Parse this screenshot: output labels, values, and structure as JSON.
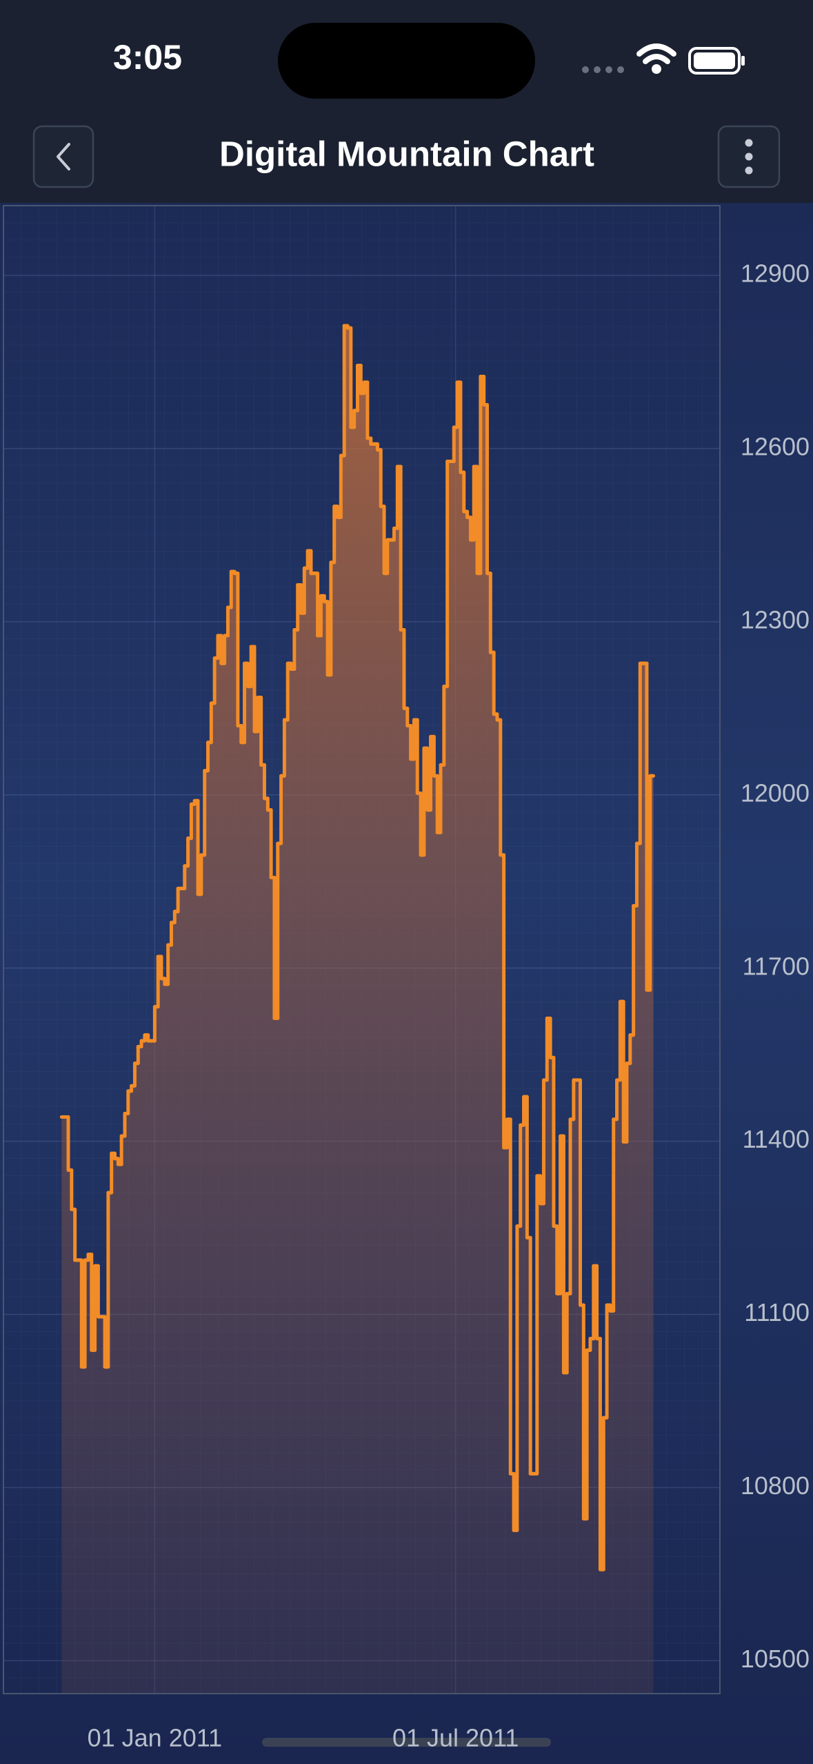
{
  "status_bar": {
    "time": "3:05"
  },
  "header": {
    "title": "Digital Mountain Chart"
  },
  "chart_data": {
    "type": "digital_mountain",
    "series": [
      {
        "color": "#f28c28",
        "x": [
          "2010-11-06",
          "2010-11-08",
          "2010-11-10",
          "2010-11-12",
          "2010-11-14",
          "2010-11-16",
          "2010-11-18",
          "2010-11-20",
          "2010-11-22",
          "2010-11-24",
          "2010-11-26",
          "2010-11-28",
          "2010-11-30",
          "2010-12-02",
          "2010-12-04",
          "2010-12-06",
          "2010-12-08",
          "2010-12-10",
          "2010-12-12",
          "2010-12-14",
          "2010-12-16",
          "2010-12-18",
          "2010-12-20",
          "2010-12-22",
          "2010-12-24",
          "2010-12-26",
          "2010-12-28",
          "2010-12-30",
          "2011-01-01",
          "2011-01-03",
          "2011-01-05",
          "2011-01-07",
          "2011-01-09",
          "2011-01-11",
          "2011-01-13",
          "2011-01-15",
          "2011-01-17",
          "2011-01-19",
          "2011-01-21",
          "2011-01-23",
          "2011-01-25",
          "2011-01-27",
          "2011-01-29",
          "2011-01-31",
          "2011-02-02",
          "2011-02-04",
          "2011-02-06",
          "2011-02-08",
          "2011-02-10",
          "2011-02-12",
          "2011-02-14",
          "2011-02-16",
          "2011-02-18",
          "2011-02-20",
          "2011-02-22",
          "2011-02-24",
          "2011-02-26",
          "2011-02-28",
          "2011-03-02",
          "2011-03-04",
          "2011-03-06",
          "2011-03-08",
          "2011-03-10",
          "2011-03-12",
          "2011-03-14",
          "2011-03-16",
          "2011-03-18",
          "2011-03-20",
          "2011-03-22",
          "2011-03-24",
          "2011-03-26",
          "2011-03-28",
          "2011-03-30",
          "2011-04-01",
          "2011-04-03",
          "2011-04-05",
          "2011-04-07",
          "2011-04-09",
          "2011-04-11",
          "2011-04-13",
          "2011-04-15",
          "2011-04-17",
          "2011-04-19",
          "2011-04-21",
          "2011-04-23",
          "2011-04-25",
          "2011-04-27",
          "2011-04-29",
          "2011-05-01",
          "2011-05-03",
          "2011-05-05",
          "2011-05-07",
          "2011-05-09",
          "2011-05-11",
          "2011-05-13",
          "2011-05-15",
          "2011-05-17",
          "2011-05-19",
          "2011-05-21",
          "2011-05-23",
          "2011-05-25",
          "2011-05-27",
          "2011-05-29",
          "2011-05-31",
          "2011-06-02",
          "2011-06-04",
          "2011-06-06",
          "2011-06-08",
          "2011-06-10",
          "2011-06-12",
          "2011-06-14",
          "2011-06-16",
          "2011-06-18",
          "2011-06-20",
          "2011-06-22",
          "2011-06-24",
          "2011-06-26",
          "2011-06-28",
          "2011-06-30",
          "2011-07-02",
          "2011-07-04",
          "2011-07-06",
          "2011-07-08",
          "2011-07-10",
          "2011-07-12",
          "2011-07-14",
          "2011-07-16",
          "2011-07-18",
          "2011-07-20",
          "2011-07-22",
          "2011-07-24",
          "2011-07-26",
          "2011-07-28",
          "2011-07-30",
          "2011-08-01",
          "2011-08-03",
          "2011-08-05",
          "2011-08-07",
          "2011-08-09",
          "2011-08-11",
          "2011-08-13",
          "2011-08-15",
          "2011-08-17",
          "2011-08-19",
          "2011-08-21",
          "2011-08-23",
          "2011-08-25",
          "2011-08-27",
          "2011-08-29",
          "2011-08-31",
          "2011-09-02",
          "2011-09-04",
          "2011-09-06",
          "2011-09-08",
          "2011-09-10",
          "2011-09-12",
          "2011-09-14",
          "2011-09-16",
          "2011-09-18",
          "2011-09-20",
          "2011-09-22",
          "2011-09-24",
          "2011-09-26",
          "2011-09-28",
          "2011-09-30",
          "2011-10-02",
          "2011-10-04",
          "2011-10-06",
          "2011-10-08",
          "2011-10-10",
          "2011-10-12",
          "2011-10-14",
          "2011-10-16",
          "2011-10-18",
          "2011-10-20",
          "2011-10-22",
          "2011-10-24",
          "2011-10-26"
        ],
        "values": [
          11442,
          11442,
          11350,
          11282,
          11194,
          11194,
          11009,
          11194,
          11204,
          11038,
          11184,
          11096,
          11096,
          11009,
          11311,
          11379,
          11370,
          11360,
          11409,
          11448,
          11487,
          11496,
          11535,
          11564,
          11574,
          11584,
          11574,
          11574,
          11633,
          11720,
          11682,
          11672,
          11740,
          11779,
          11798,
          11838,
          11838,
          11877,
          11925,
          11984,
          11990,
          11828,
          11896,
          12042,
          12091,
          12159,
          12237,
          12276,
          12228,
          12276,
          12325,
          12387,
          12384,
          12120,
          12091,
          12228,
          12188,
          12257,
          12110,
          12169,
          12052,
          11994,
          11974,
          11857,
          11613,
          11916,
          12033,
          12130,
          12228,
          12218,
          12286,
          12364,
          12315,
          12393,
          12423,
          12384,
          12384,
          12276,
          12345,
          12335,
          12208,
          12403,
          12500,
          12481,
          12588,
          12813,
          12809,
          12637,
          12666,
          12744,
          12696,
          12715,
          12618,
          12608,
          12608,
          12598,
          12500,
          12384,
          12442,
          12442,
          12462,
          12569,
          12286,
          12150,
          12120,
          12062,
          12130,
          12003,
          11896,
          12081,
          11974,
          12101,
          12033,
          11935,
          12052,
          12188,
          12578,
          12578,
          12637,
          12715,
          12559,
          12491,
          12481,
          12442,
          12569,
          12384,
          12725,
          12676,
          12384,
          12247,
          12140,
          12130,
          11896,
          11389,
          11438,
          10824,
          10726,
          11253,
          11428,
          11477,
          11233,
          10824,
          10824,
          11340,
          11292,
          11506,
          11613,
          11545,
          11253,
          11136,
          11409,
          10999,
          11136,
          11438,
          11506,
          11506,
          11116,
          10746,
          11038,
          11058,
          11184,
          11058,
          10658,
          10921,
          11116,
          11106,
          11438,
          11506,
          11642,
          11399,
          11535,
          11584,
          11808,
          11916,
          12228,
          12228,
          11662,
          12033
        ]
      }
    ],
    "xlim": [
      "2010-10-02",
      "2011-12-07"
    ],
    "xticks": [
      {
        "value": "2011-01-01",
        "label": "01 Jan 2011"
      },
      {
        "value": "2011-07-01",
        "label": "01 Jul 2011"
      }
    ],
    "ylim": [
      10443,
      13021
    ],
    "yticks": [
      10500,
      10800,
      11100,
      11400,
      11700,
      12000,
      12300,
      12600,
      12900
    ],
    "grid": true
  }
}
